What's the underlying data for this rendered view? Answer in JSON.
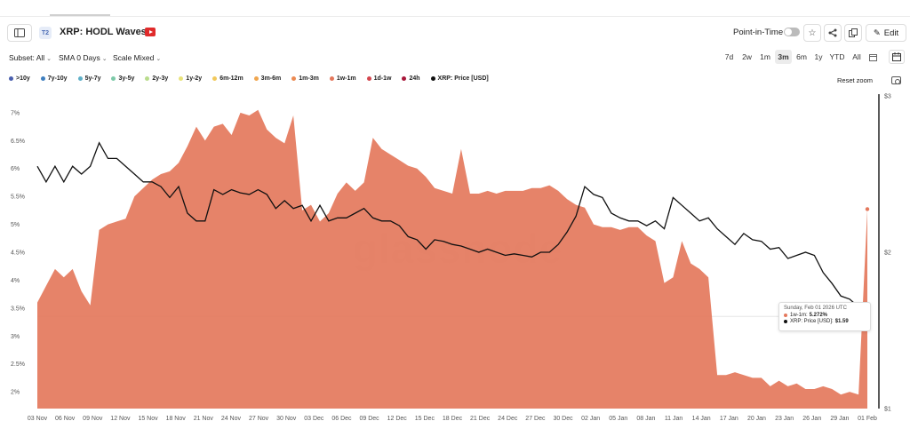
{
  "header": {
    "badge": "T2",
    "title": "XRP: HODL Waves",
    "point_in_time": "Point-in-Time",
    "edit": "Edit"
  },
  "controls": {
    "subset": "Subset: All",
    "sma": "SMA 0 Days",
    "scale": "Scale Mixed",
    "ranges": [
      "7d",
      "2w",
      "1m",
      "3m",
      "6m",
      "1y",
      "YTD",
      "All"
    ],
    "active_range": "3m",
    "reset_zoom": "Reset zoom"
  },
  "legend": [
    {
      "label": ">10y",
      "color": "#4a5fae"
    },
    {
      "label": "7y-10y",
      "color": "#3f7fbf"
    },
    {
      "label": "5y-7y",
      "color": "#5fb0c8"
    },
    {
      "label": "3y-5y",
      "color": "#7dc9a8"
    },
    {
      "label": "2y-3y",
      "color": "#b9dc8c"
    },
    {
      "label": "1y-2y",
      "color": "#e8e27a"
    },
    {
      "label": "6m-12m",
      "color": "#f2c95c"
    },
    {
      "label": "3m-6m",
      "color": "#f0a64f"
    },
    {
      "label": "1m-3m",
      "color": "#ec8a52"
    },
    {
      "label": "1w-1m",
      "color": "#e4785c"
    },
    {
      "label": "1d-1w",
      "color": "#d4464e"
    },
    {
      "label": "24h",
      "color": "#a8173a"
    },
    {
      "label": "XRP: Price [USD]",
      "color": "#111111"
    }
  ],
  "tooltip": {
    "date": "Sunday, Feb 01 2026 UTC",
    "series1_label": "1w-1m:",
    "series1_value": "5.272%",
    "series2_label": "XRP: Price [USD]:",
    "series2_value": "$1.59"
  },
  "watermark": "glassnode",
  "chart_data": {
    "type": "area",
    "x_tick_labels": [
      "03 Nov",
      "06 Nov",
      "09 Nov",
      "12 Nov",
      "15 Nov",
      "18 Nov",
      "21 Nov",
      "24 Nov",
      "27 Nov",
      "30 Nov",
      "03 Dec",
      "06 Dec",
      "09 Dec",
      "12 Dec",
      "15 Dec",
      "18 Dec",
      "21 Dec",
      "24 Dec",
      "27 Dec",
      "30 Dec",
      "02 Jan",
      "05 Jan",
      "08 Jan",
      "11 Jan",
      "14 Jan",
      "17 Jan",
      "20 Jan",
      "23 Jan",
      "26 Jan",
      "29 Jan",
      "01 Feb"
    ],
    "y_left_ticks": [
      "2%",
      "2.5%",
      "3%",
      "3.5%",
      "4%",
      "4.5%",
      "5%",
      "5.5%",
      "6%",
      "6.5%",
      "7%"
    ],
    "y_left_range": [
      1.7,
      7.3
    ],
    "y_right_ticks": [
      "$1",
      "$2",
      "$3"
    ],
    "y_right_range": [
      1,
      3
    ],
    "series": [
      {
        "name": "1w-1m",
        "color": "#e4785c",
        "unit": "%",
        "values": [
          3.6,
          3.9,
          4.2,
          4.05,
          4.2,
          3.8,
          3.55,
          4.9,
          5.0,
          5.05,
          5.1,
          5.5,
          5.65,
          5.8,
          5.9,
          5.95,
          6.1,
          6.4,
          6.75,
          6.5,
          6.75,
          6.8,
          6.6,
          7.0,
          6.95,
          7.05,
          6.7,
          6.55,
          6.45,
          6.95,
          5.25,
          5.35,
          5.05,
          5.2,
          5.55,
          5.75,
          5.6,
          5.75,
          6.55,
          6.35,
          6.25,
          6.15,
          6.05,
          6.0,
          5.85,
          5.65,
          5.6,
          5.55,
          6.35,
          5.55,
          5.55,
          5.6,
          5.55,
          5.6,
          5.6,
          5.6,
          5.65,
          5.65,
          5.7,
          5.6,
          5.45,
          5.35,
          5.3,
          5.0,
          4.95,
          4.95,
          4.9,
          4.95,
          4.95,
          4.8,
          4.7,
          3.95,
          4.05,
          4.7,
          4.3,
          4.2,
          4.05,
          2.3,
          2.3,
          2.35,
          2.3,
          2.25,
          2.25,
          2.1,
          2.2,
          2.1,
          2.15,
          2.05,
          2.05,
          2.1,
          2.05,
          1.95,
          2.0,
          1.95,
          5.272
        ]
      },
      {
        "name": "XRP: Price [USD]",
        "color": "#111111",
        "unit": "USD",
        "values": [
          2.55,
          2.45,
          2.55,
          2.45,
          2.55,
          2.5,
          2.55,
          2.7,
          2.6,
          2.6,
          2.55,
          2.5,
          2.45,
          2.45,
          2.42,
          2.35,
          2.42,
          2.25,
          2.2,
          2.2,
          2.4,
          2.37,
          2.4,
          2.38,
          2.37,
          2.4,
          2.37,
          2.28,
          2.33,
          2.28,
          2.3,
          2.2,
          2.3,
          2.2,
          2.22,
          2.22,
          2.25,
          2.28,
          2.22,
          2.2,
          2.2,
          2.17,
          2.1,
          2.08,
          2.02,
          2.08,
          2.07,
          2.05,
          2.04,
          2.02,
          2.0,
          2.02,
          2.0,
          1.98,
          1.99,
          1.98,
          1.97,
          2.0,
          2.0,
          2.05,
          2.13,
          2.23,
          2.42,
          2.37,
          2.35,
          2.25,
          2.22,
          2.2,
          2.2,
          2.17,
          2.2,
          2.15,
          2.35,
          2.3,
          2.25,
          2.2,
          2.22,
          2.15,
          2.1,
          2.05,
          2.12,
          2.08,
          2.07,
          2.02,
          2.03,
          1.96,
          1.98,
          2.0,
          1.98,
          1.87,
          1.8,
          1.72,
          1.7,
          1.65,
          1.59
        ]
      }
    ]
  }
}
